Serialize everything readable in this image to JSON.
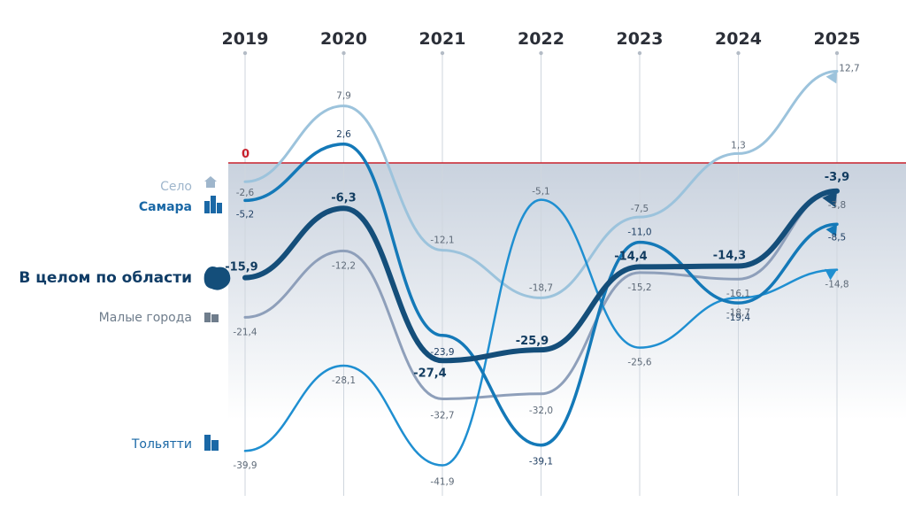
{
  "chart_data": {
    "type": "line",
    "x": [
      "2019",
      "2020",
      "2021",
      "2022",
      "2023",
      "2024",
      "2025"
    ],
    "zero_label": "0",
    "zero_line_color": "#c8202c",
    "series": [
      {
        "name": "Село",
        "values": [
          -2.6,
          7.9,
          -12.1,
          -18.7,
          -7.5,
          1.3,
          12.7
        ],
        "labels": [
          "-2,6",
          "7,9",
          "-12,1",
          "-18,7",
          "-7,5",
          "1,3",
          "12,7"
        ],
        "color": "#9cc3dc",
        "icon": "house-icon"
      },
      {
        "name": "Самара",
        "values": [
          -5.2,
          2.6,
          -23.9,
          -39.1,
          -11.0,
          -19.4,
          -8.5
        ],
        "labels": [
          "-5,2",
          "2,6",
          "-23,9",
          "-39,1",
          "-11,0",
          "-19,4",
          "-8,5"
        ],
        "color": "#1479b8",
        "icon": "city-buildings-icon"
      },
      {
        "name": "В целом по области",
        "values": [
          -15.9,
          -6.3,
          -27.4,
          -25.9,
          -14.4,
          -14.3,
          -3.9
        ],
        "labels": [
          "-15,9",
          "-6,3",
          "-27,4",
          "-25,9",
          "-14,4",
          "-14,3",
          "-3,9"
        ],
        "color": "#144e7a",
        "icon": "region-map-icon"
      },
      {
        "name": "Малые города",
        "values": [
          -21.4,
          -12.2,
          -32.7,
          -32.0,
          -15.2,
          -16.1,
          -3.8
        ],
        "labels": [
          "-21,4",
          "-12,2",
          "-32,7",
          "-32,0",
          "-15,2",
          "-16,1",
          "-3,8"
        ],
        "color": "#8e9fba",
        "icon": "small-buildings-icon"
      },
      {
        "name": "Тольятти",
        "values": [
          -39.9,
          -28.1,
          -41.9,
          -5.1,
          -25.6,
          -18.7,
          -14.8
        ],
        "labels": [
          "-39,9",
          "-28,1",
          "-41,9",
          "-5,1",
          "-25,6",
          "-18,7",
          "-14,8"
        ],
        "color": "#1f8fd1",
        "icon": "office-buildings-icon"
      }
    ],
    "ylim": [
      -45,
      15
    ],
    "grid": false,
    "legend": "left"
  }
}
